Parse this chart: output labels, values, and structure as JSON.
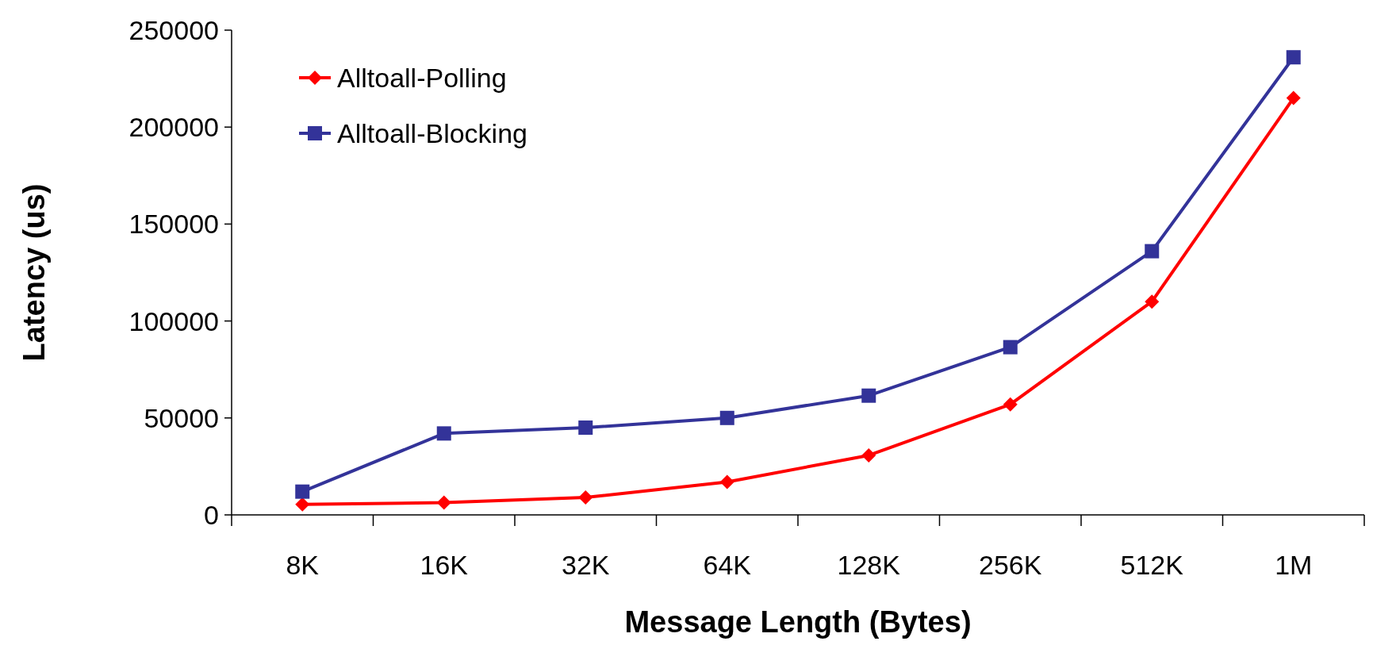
{
  "chart_data": {
    "type": "line",
    "xlabel": "Message Length (Bytes)",
    "ylabel": "Latency (us)",
    "categories": [
      "8K",
      "16K",
      "32K",
      "64K",
      "128K",
      "256K",
      "512K",
      "1M"
    ],
    "ylim": [
      0,
      250000
    ],
    "yticks": [
      0,
      50000,
      100000,
      150000,
      200000,
      250000
    ],
    "grid": false,
    "legend": "top left",
    "series": [
      {
        "name": "Alltoall-Polling",
        "color": "#ff0000",
        "marker": "diamond",
        "values": [
          5400,
          6300,
          9000,
          17000,
          30700,
          57000,
          110000,
          215000
        ]
      },
      {
        "name": "Alltoall-Blocking",
        "color": "#333399",
        "marker": "square",
        "values": [
          12000,
          42000,
          45000,
          50000,
          61500,
          86500,
          136000,
          236000
        ]
      }
    ]
  }
}
